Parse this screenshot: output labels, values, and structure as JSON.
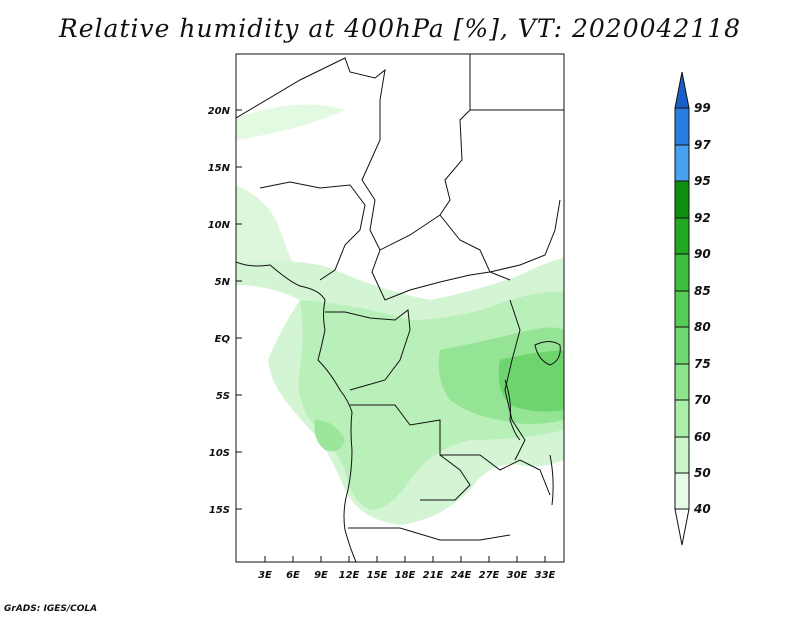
{
  "title": "Relative humidity at 400hPa [%], VT: 2020042118",
  "credit": "GrADS: IGES/COLA",
  "map": {
    "lat_labels": [
      "20N",
      "15N",
      "10N",
      "5N",
      "EQ",
      "5S",
      "10S",
      "15S"
    ],
    "lon_labels": [
      "3E",
      "6E",
      "9E",
      "12E",
      "15E",
      "18E",
      "21E",
      "24E",
      "27E",
      "30E",
      "33E"
    ]
  },
  "colorbar": {
    "levels": [
      "40",
      "50",
      "60",
      "70",
      "75",
      "80",
      "85",
      "90",
      "92",
      "95",
      "97",
      "99"
    ],
    "colors": [
      "#e6fbe6",
      "#c9f5c9",
      "#aaeeaa",
      "#8ce38c",
      "#70d870",
      "#55cc55",
      "#3cbf3c",
      "#22a822",
      "#0e8e0e",
      "#4aa0f0",
      "#2a7ee0",
      "#1a5ec8"
    ]
  }
}
